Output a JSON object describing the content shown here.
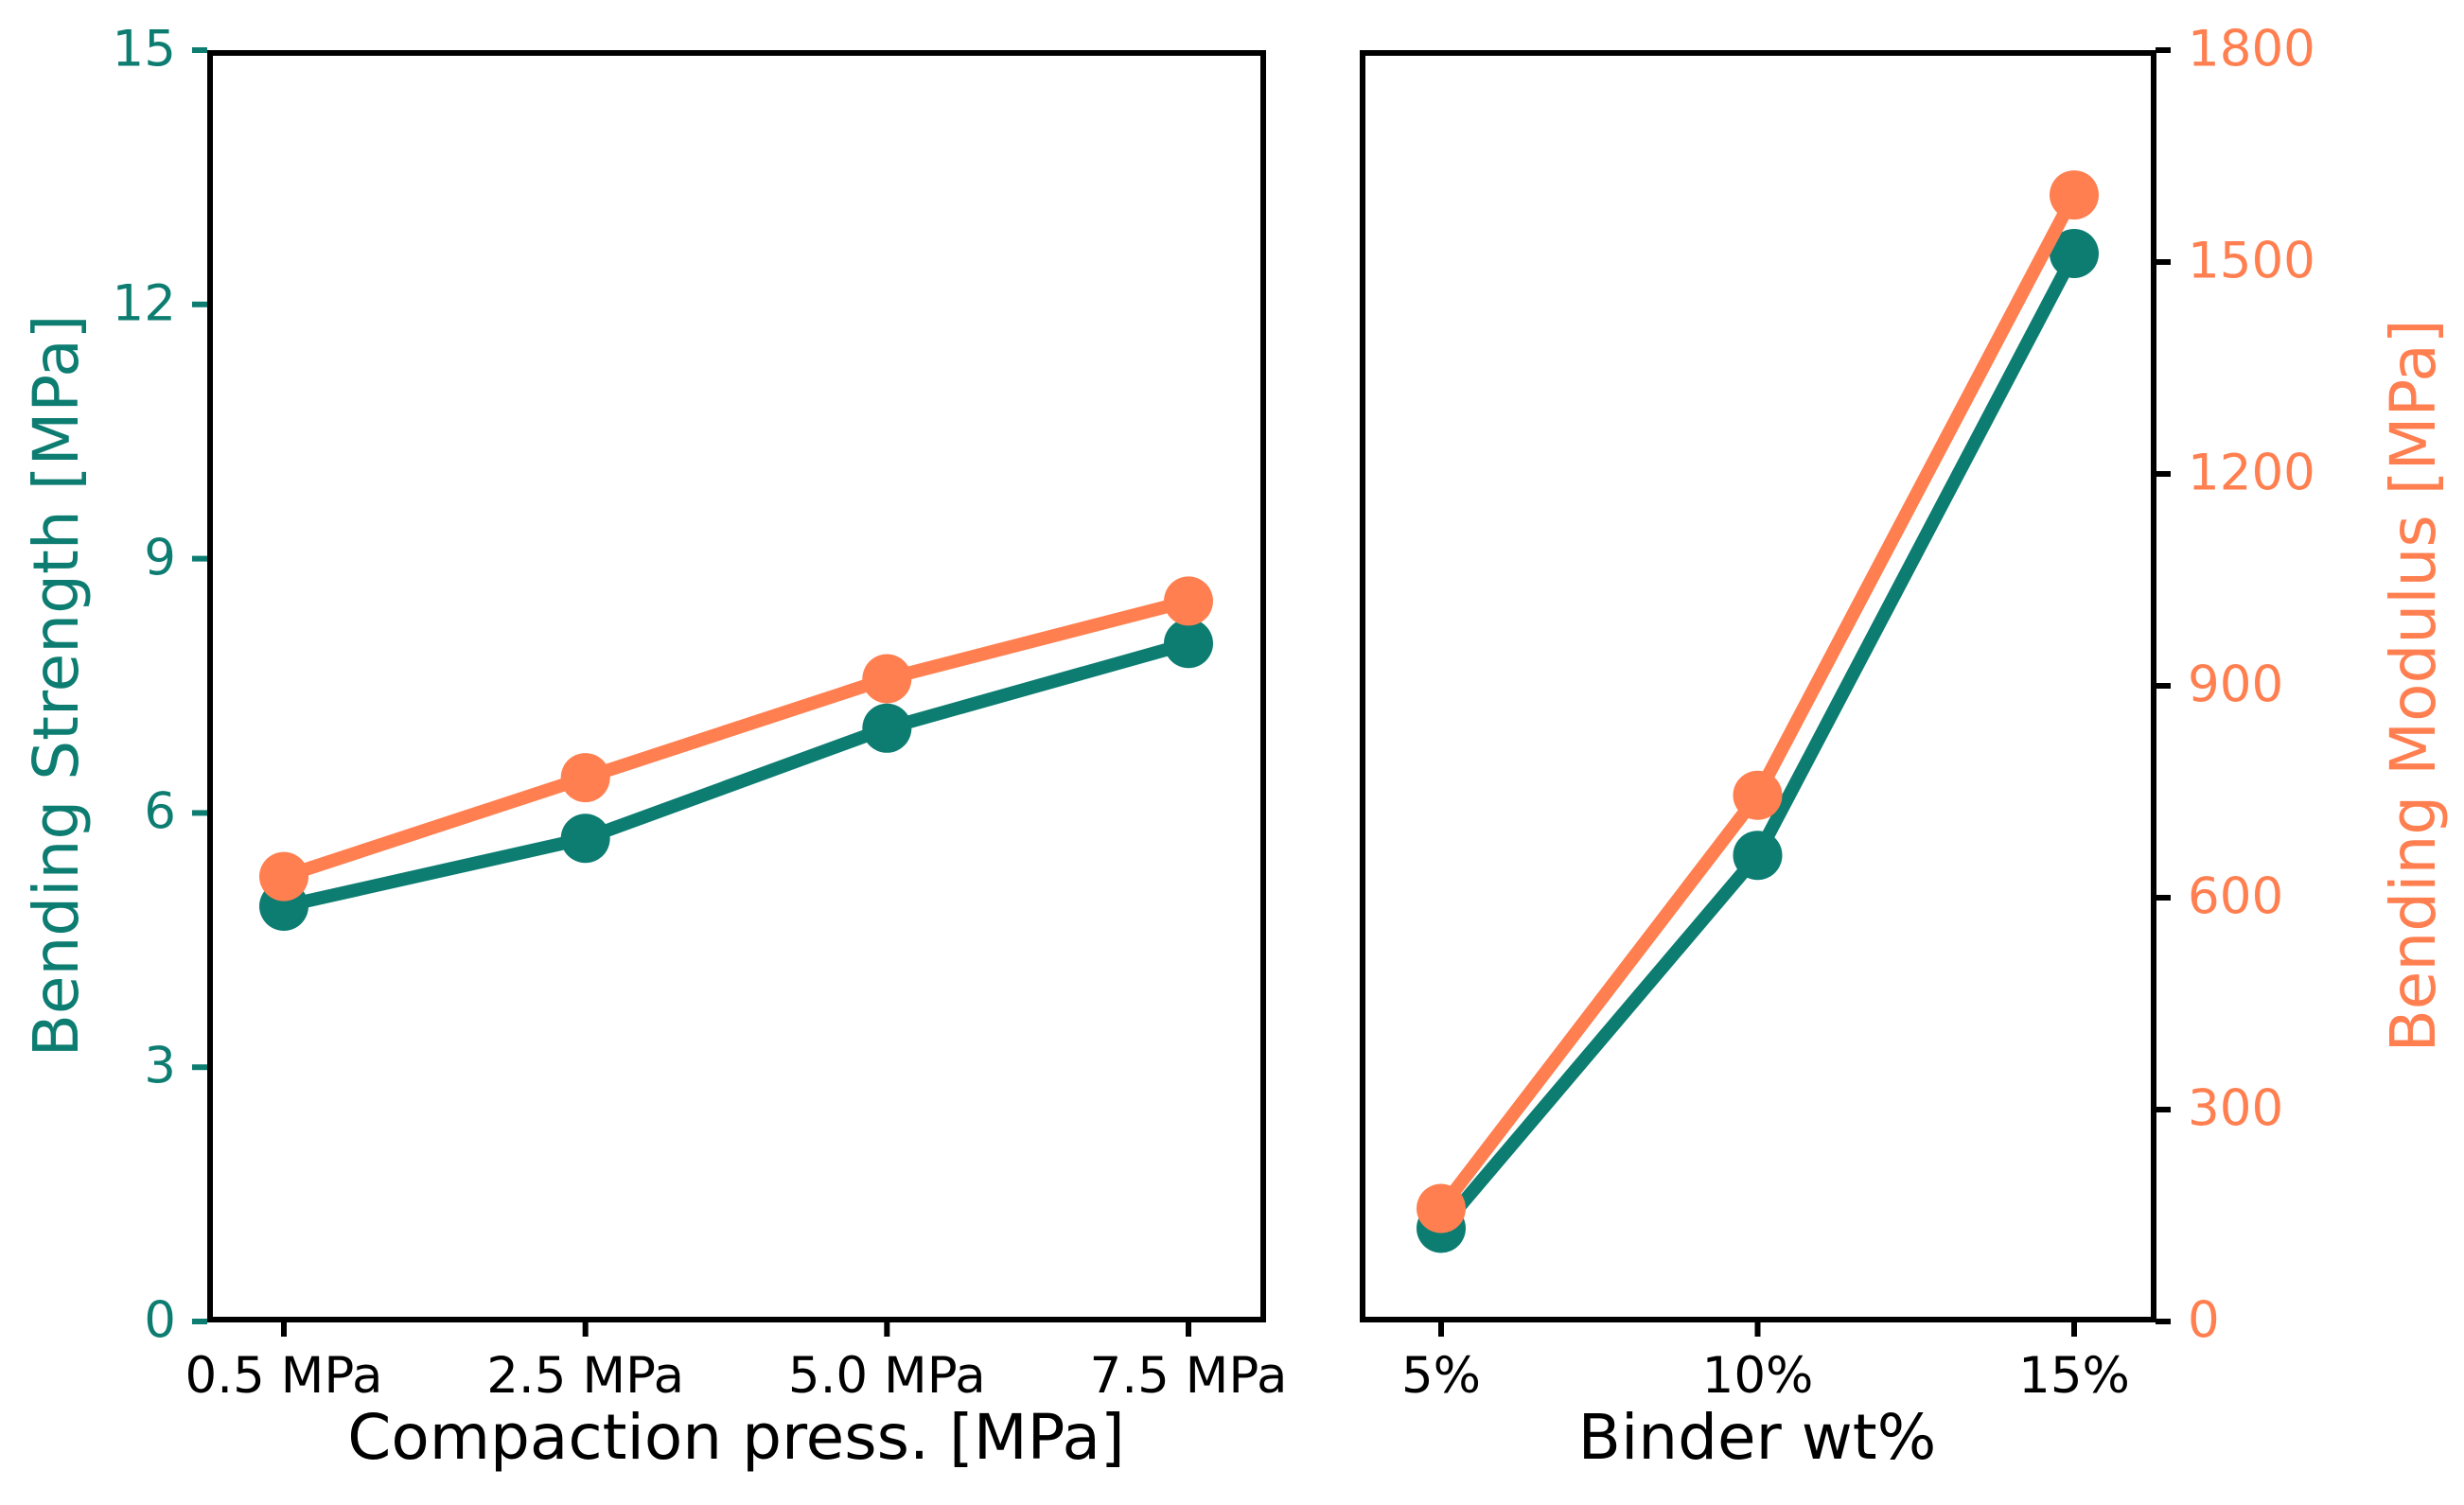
{
  "figure": {
    "background": "#ffffff",
    "spine_color": "#000000",
    "teal": "#0d7d72",
    "orange": "#ff7f50",
    "black": "#000000"
  },
  "chart_data": [
    {
      "type": "line",
      "xlabel": "Compaction press. [MPa]",
      "categories": [
        "0.5 MPa",
        "2.5 MPa",
        "5.0 MPa",
        "7.5 MPa"
      ],
      "left_axis": {
        "label": "Bending Strength [MPa]",
        "range": [
          0,
          15
        ],
        "ticks": [
          0,
          3,
          6,
          9,
          12,
          15
        ],
        "tick_labels": [
          "0",
          "3",
          "6",
          "9",
          "12",
          "15"
        ],
        "color": "#0d7d72",
        "tick_color": "#0d7d72"
      },
      "right_axis": {
        "label": "",
        "range": [
          0,
          1800
        ],
        "ticks": [],
        "tick_labels": [],
        "color": "#ff7f50",
        "tick_color": "#000000"
      },
      "grid": false,
      "legend": "none",
      "series": [
        {
          "name": "Bending Strength",
          "axis": "left",
          "color": "#0d7d72",
          "values": [
            4.9,
            5.7,
            7.0,
            8.0
          ]
        },
        {
          "name": "Bending Modulus",
          "axis": "right",
          "color": "#ff7f50",
          "values": [
            630,
            770,
            910,
            1020
          ]
        }
      ]
    },
    {
      "type": "line",
      "xlabel": "Binder wt%",
      "categories": [
        "5%",
        "10%",
        "15%"
      ],
      "left_axis": {
        "label": "",
        "range": [
          0,
          15
        ],
        "ticks": [],
        "tick_labels": [],
        "color": "#0d7d72",
        "tick_color": "#0d7d72"
      },
      "right_axis": {
        "label": "Bending Modulus [MPa]",
        "range": [
          0,
          1800
        ],
        "ticks": [
          0,
          300,
          600,
          900,
          1200,
          1500,
          1800
        ],
        "tick_labels": [
          "0",
          "300",
          "600",
          "900",
          "1200",
          "1500",
          "1800"
        ],
        "color": "#ff7f50",
        "tick_color": "#000000"
      },
      "grid": false,
      "legend": "none",
      "series": [
        {
          "name": "Bending Strength",
          "axis": "left",
          "color": "#0d7d72",
          "values": [
            1.1,
            5.5,
            12.6
          ]
        },
        {
          "name": "Bending Modulus",
          "axis": "right",
          "color": "#ff7f50",
          "values": [
            160,
            745,
            1595
          ]
        }
      ]
    }
  ]
}
